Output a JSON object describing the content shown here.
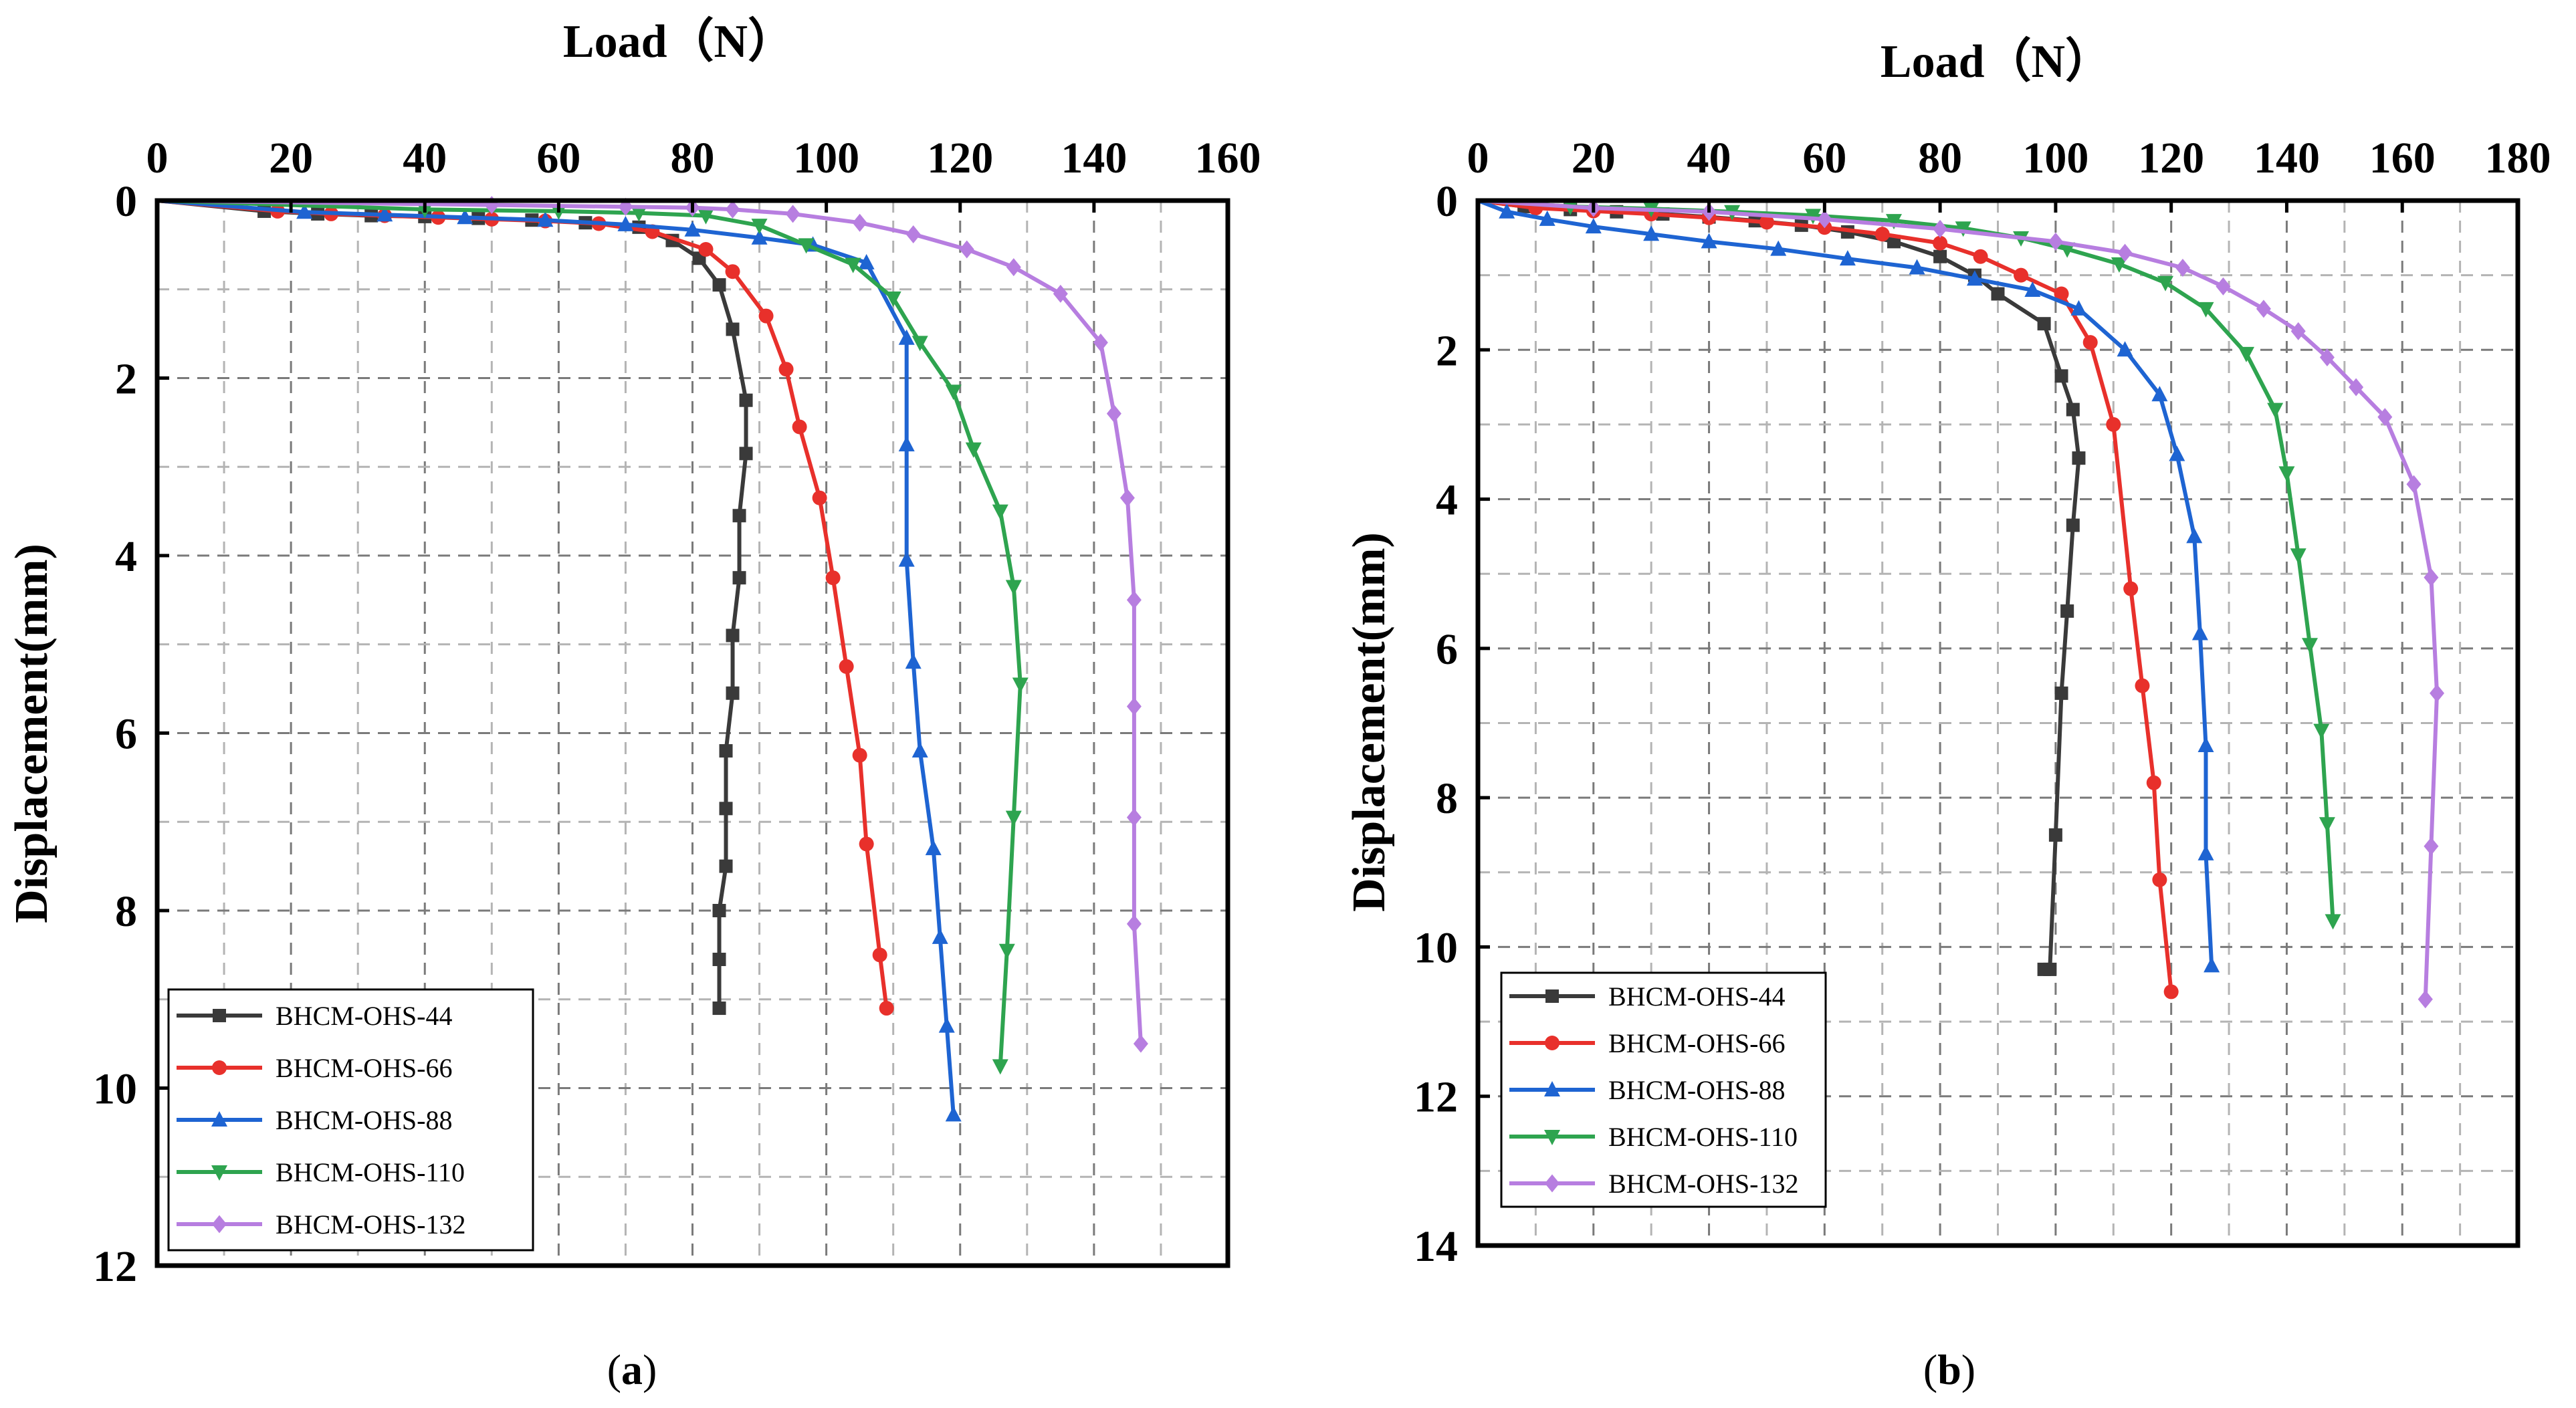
{
  "chart_data": [
    {
      "type": "line",
      "panel_label_open": "(",
      "panel_label": "a",
      "panel_label_close": ")",
      "xlabel": "Load（N）",
      "ylabel": "Displacement(mm)",
      "xlim": [
        0,
        160
      ],
      "ylim": [
        0,
        12
      ],
      "x_ticks": [
        0,
        20,
        40,
        60,
        80,
        100,
        120,
        140,
        160
      ],
      "y_ticks": [
        0,
        2,
        4,
        6,
        8,
        10,
        12
      ],
      "x_axis_position": "top",
      "y_axis_inverted": true,
      "grid": true,
      "legend_position": "bottom-left",
      "series": [
        {
          "name": "BHCM-OHS-44",
          "color": "#3a3a3a",
          "marker": "square",
          "x": [
            0,
            16,
            24,
            32,
            40,
            48,
            56,
            64,
            72,
            77,
            81,
            84,
            86,
            88,
            88,
            87,
            87,
            86,
            86,
            85,
            85,
            85,
            84,
            84,
            84,
            84
          ],
          "y": [
            0,
            0.12,
            0.15,
            0.17,
            0.18,
            0.2,
            0.22,
            0.25,
            0.3,
            0.45,
            0.65,
            0.95,
            1.45,
            2.25,
            2.85,
            3.55,
            4.25,
            4.9,
            5.55,
            6.2,
            6.85,
            7.5,
            8.0,
            8.55,
            9.1,
            9.1
          ]
        },
        {
          "name": "BHCM-OHS-66",
          "color": "#e8302b",
          "marker": "circle",
          "x": [
            0,
            18,
            26,
            34,
            42,
            50,
            58,
            66,
            74,
            82,
            86,
            91,
            94,
            96,
            99,
            101,
            103,
            105,
            106,
            108,
            109
          ],
          "y": [
            0,
            0.12,
            0.15,
            0.17,
            0.19,
            0.21,
            0.23,
            0.26,
            0.35,
            0.55,
            0.8,
            1.3,
            1.9,
            2.55,
            3.35,
            4.25,
            5.25,
            6.25,
            7.25,
            8.5,
            9.1
          ]
        },
        {
          "name": "BHCM-OHS-88",
          "color": "#1e64d2",
          "marker": "triangle-up",
          "x": [
            0,
            22,
            34,
            46,
            58,
            70,
            80,
            90,
            98,
            106,
            112,
            112,
            112,
            113,
            114,
            116,
            117,
            118,
            119
          ],
          "y": [
            0,
            0.13,
            0.16,
            0.19,
            0.22,
            0.27,
            0.33,
            0.42,
            0.5,
            0.7,
            1.55,
            2.75,
            4.05,
            5.2,
            6.2,
            7.3,
            8.3,
            9.3,
            10.3
          ]
        },
        {
          "name": "BHCM-OHS-110",
          "color": "#2ea44f",
          "marker": "triangle-down",
          "x": [
            0,
            40,
            60,
            72,
            82,
            90,
            97,
            104,
            110,
            114,
            119,
            122,
            126,
            128,
            129,
            128,
            127,
            126
          ],
          "y": [
            0,
            0.1,
            0.12,
            0.14,
            0.17,
            0.28,
            0.5,
            0.72,
            1.1,
            1.6,
            2.15,
            2.8,
            3.5,
            4.35,
            5.45,
            6.95,
            8.45,
            9.75
          ]
        },
        {
          "name": "BHCM-OHS-132",
          "color": "#b77ee0",
          "marker": "diamond",
          "x": [
            0,
            50,
            70,
            80,
            86,
            95,
            105,
            113,
            121,
            128,
            135,
            141,
            143,
            145,
            146,
            146,
            146,
            146,
            147
          ],
          "y": [
            0,
            0.05,
            0.07,
            0.08,
            0.1,
            0.15,
            0.25,
            0.38,
            0.55,
            0.75,
            1.05,
            1.6,
            2.4,
            3.35,
            4.5,
            5.7,
            6.95,
            8.15,
            9.5
          ]
        }
      ]
    },
    {
      "type": "line",
      "panel_label_open": "(",
      "panel_label": "b",
      "panel_label_close": ")",
      "xlabel": "Load（N）",
      "ylabel": "Displacement(mm)",
      "xlim": [
        0,
        180
      ],
      "ylim": [
        0,
        14
      ],
      "x_ticks": [
        0,
        20,
        40,
        60,
        80,
        100,
        120,
        140,
        160,
        180
      ],
      "y_ticks": [
        0,
        2,
        4,
        6,
        8,
        10,
        12,
        14
      ],
      "x_axis_position": "top",
      "y_axis_inverted": true,
      "grid": true,
      "legend_position": "bottom-left",
      "series": [
        {
          "name": "BHCM-OHS-44",
          "color": "#3a3a3a",
          "marker": "square",
          "x": [
            0,
            8,
            16,
            24,
            32,
            40,
            48,
            56,
            64,
            72,
            80,
            86,
            90,
            98,
            101,
            103,
            104,
            103,
            102,
            101,
            100,
            99,
            98
          ],
          "y": [
            0,
            0.08,
            0.12,
            0.15,
            0.18,
            0.22,
            0.27,
            0.33,
            0.42,
            0.55,
            0.75,
            1.0,
            1.25,
            1.65,
            2.35,
            2.8,
            3.45,
            4.35,
            5.5,
            6.6,
            8.5,
            10.3,
            10.3
          ]
        },
        {
          "name": "BHCM-OHS-66",
          "color": "#e8302b",
          "marker": "circle",
          "x": [
            0,
            10,
            20,
            30,
            40,
            50,
            60,
            70,
            80,
            87,
            94,
            101,
            106,
            110,
            113,
            115,
            117,
            118,
            120
          ],
          "y": [
            0,
            0.1,
            0.14,
            0.18,
            0.23,
            0.29,
            0.36,
            0.45,
            0.57,
            0.75,
            1.0,
            1.25,
            1.9,
            3.0,
            5.2,
            6.5,
            7.8,
            9.1,
            10.6
          ]
        },
        {
          "name": "BHCM-OHS-88",
          "color": "#1e64d2",
          "marker": "triangle-up",
          "x": [
            0,
            5,
            12,
            20,
            30,
            40,
            52,
            64,
            76,
            86,
            96,
            104,
            112,
            118,
            121,
            124,
            125,
            126,
            126,
            127
          ],
          "y": [
            0,
            0.15,
            0.25,
            0.35,
            0.45,
            0.55,
            0.65,
            0.78,
            0.9,
            1.05,
            1.2,
            1.45,
            2.0,
            2.6,
            3.4,
            4.5,
            5.8,
            7.3,
            8.75,
            10.25
          ]
        },
        {
          "name": "BHCM-OHS-110",
          "color": "#2ea44f",
          "marker": "triangle-down",
          "x": [
            0,
            16,
            30,
            44,
            58,
            72,
            84,
            94,
            102,
            111,
            119,
            126,
            133,
            138,
            140,
            142,
            144,
            146,
            147,
            148
          ],
          "y": [
            0,
            0.08,
            0.11,
            0.15,
            0.2,
            0.27,
            0.37,
            0.5,
            0.65,
            0.85,
            1.1,
            1.45,
            2.05,
            2.8,
            3.65,
            4.75,
            5.95,
            7.1,
            8.35,
            9.65
          ]
        },
        {
          "name": "BHCM-OHS-132",
          "color": "#b77ee0",
          "marker": "diamond",
          "x": [
            0,
            20,
            40,
            60,
            80,
            100,
            112,
            122,
            129,
            136,
            142,
            147,
            152,
            157,
            162,
            165,
            166,
            165,
            164,
            164
          ],
          "y": [
            0,
            0.1,
            0.15,
            0.25,
            0.38,
            0.55,
            0.7,
            0.9,
            1.15,
            1.45,
            1.75,
            2.1,
            2.5,
            2.9,
            3.8,
            5.05,
            6.6,
            8.65,
            10.7,
            10.7
          ]
        }
      ]
    }
  ]
}
